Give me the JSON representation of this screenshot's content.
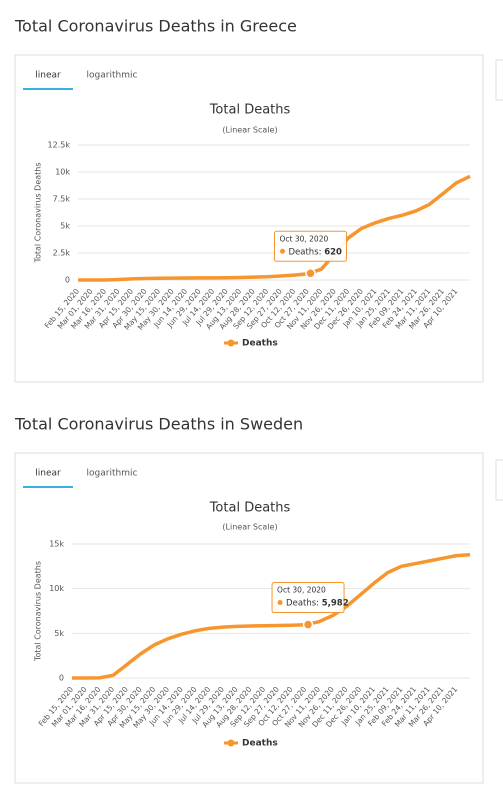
{
  "chart_data": [
    {
      "type": "line",
      "heading": "Total Coronavirus Deaths in Greece",
      "tabs": [
        "linear",
        "logarithmic"
      ],
      "title": "Total Deaths",
      "subtitle": "(Linear Scale)",
      "y_label": "Total Coronavirus Deaths",
      "categories": [
        "Feb 15, 2020",
        "Mar 01, 2020",
        "Mar 16, 2020",
        "Mar 31, 2020",
        "Apr 15, 2020",
        "Apr 30, 2020",
        "May 15, 2020",
        "May 30, 2020",
        "Jun 14, 2020",
        "Jun 29, 2020",
        "Jul 14, 2020",
        "Jul 29, 2020",
        "Aug 13, 2020",
        "Aug 28, 2020",
        "Sep 12, 2020",
        "Sep 27, 2020",
        "Oct 12, 2020",
        "Oct 27, 2020",
        "Nov 11, 2020",
        "Nov 26, 2020",
        "Dec 11, 2020",
        "Dec 26, 2020",
        "Jan 10, 2021",
        "Jan 25, 2021",
        "Feb 09, 2021",
        "Feb 24, 2021",
        "Mar 11, 2021",
        "Mar 26, 2021",
        "Apr 10, 2021",
        null
      ],
      "series": [
        {
          "name": "Deaths",
          "color": "#f7962e",
          "values": [
            0,
            0,
            3,
            50,
            100,
            140,
            160,
            175,
            183,
            190,
            193,
            203,
            230,
            270,
            300,
            370,
            450,
            570,
            1000,
            2400,
            3900,
            4800,
            5300,
            5700,
            6000,
            6400,
            7000,
            8000,
            9000,
            9600
          ]
        }
      ],
      "ylim": [
        0,
        12500
      ],
      "yticks": [
        0,
        {
          "value": 2500,
          "label": "2.5k"
        },
        {
          "value": 5000,
          "label": "5k"
        },
        {
          "value": 7500,
          "label": "7.5k"
        },
        {
          "value": 10000,
          "label": "10k"
        },
        {
          "value": 12500,
          "label": "12.5k"
        }
      ],
      "tooltip": {
        "x": "Oct 30, 2020",
        "label": "Deaths:",
        "value": 620
      }
    },
    {
      "type": "line",
      "heading": "Total Coronavirus Deaths in Sweden",
      "tabs": [
        "linear",
        "logarithmic"
      ],
      "title": "Total Deaths",
      "subtitle": "(Linear Scale)",
      "y_label": "Total Coronavirus Deaths",
      "categories": [
        "Feb 15, 2020",
        "Mar 01, 2020",
        "Mar 16, 2020",
        "Mar 31, 2020",
        "Apr 15, 2020",
        "Apr 30, 2020",
        "May 15, 2020",
        "May 30, 2020",
        "Jun 14, 2020",
        "Jun 29, 2020",
        "Jul 14, 2020",
        "Jul 29, 2020",
        "Aug 13, 2020",
        "Aug 28, 2020",
        "Sep 12, 2020",
        "Sep 27, 2020",
        "Oct 12, 2020",
        "Oct 27, 2020",
        "Nov 11, 2020",
        "Nov 26, 2020",
        "Dec 11, 2020",
        "Dec 26, 2020",
        "Jan 10, 2021",
        "Jan 25, 2021",
        "Feb 09, 2021",
        "Feb 24, 2021",
        "Mar 11, 2021",
        "Mar 26, 2021",
        "Apr 10, 2021",
        null
      ],
      "series": [
        {
          "name": "Deaths",
          "color": "#f7962e",
          "values": [
            0,
            0,
            10,
            300,
            1500,
            2700,
            3700,
            4400,
            4900,
            5300,
            5550,
            5700,
            5780,
            5820,
            5850,
            5880,
            5900,
            5960,
            6300,
            7000,
            8000,
            9300,
            10600,
            11800,
            12500,
            12800,
            13100,
            13400,
            13700,
            13800
          ]
        }
      ],
      "ylim": [
        0,
        15000
      ],
      "yticks": [
        0,
        {
          "value": 5000,
          "label": "5k"
        },
        {
          "value": 10000,
          "label": "10k"
        },
        {
          "value": 15000,
          "label": "15k"
        }
      ],
      "tooltip": {
        "x": "Oct 30, 2020",
        "label": "Deaths:",
        "value": 5982,
        "value_label": "5,982"
      }
    }
  ]
}
